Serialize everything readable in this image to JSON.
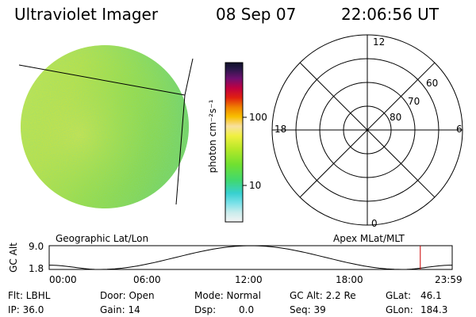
{
  "header": {
    "instrument": "Ultraviolet Imager",
    "date": "08 Sep 07",
    "time": "22:06:56 UT"
  },
  "colorbar": {
    "unit_label": "photon cm⁻²s⁻¹",
    "ticks": [
      "100",
      "10"
    ]
  },
  "polar_plot": {
    "mlt_labels": [
      "12",
      "18",
      "6",
      "0"
    ],
    "lat_labels": [
      "60",
      "70",
      "80"
    ]
  },
  "orbit_strip": {
    "left_label": "Geographic Lat/Lon",
    "right_label": "Apex MLat/MLT",
    "y_axis_label": "GC Alt",
    "y_ticks": [
      "9.0",
      "1.8"
    ],
    "time_ticks": [
      "00:00",
      "06:00",
      "12:00",
      "18:00",
      "23:59"
    ],
    "altitude_track": {
      "hours": [
        0,
        3,
        12,
        21,
        23.98
      ],
      "altitude_re": [
        3.1,
        1.8,
        9.0,
        1.8,
        3.1
      ]
    },
    "current_time_hour": 22.1,
    "marker_color": "#cc0000"
  },
  "status": {
    "flt": "Flt: LBHL",
    "ip": "IP: 36.0",
    "door": "Door: Open",
    "gain": "Gain: 14",
    "mode": "Mode: Normal",
    "dsp_label": "Dsp:",
    "dsp_value": "0.0",
    "gc_alt": "GC Alt: 2.2 Re",
    "seq": "Seq: 39",
    "glat_label": "GLat:",
    "glat_value": "46.1",
    "glon_label": "GLon:",
    "glon_value": "184.3"
  }
}
